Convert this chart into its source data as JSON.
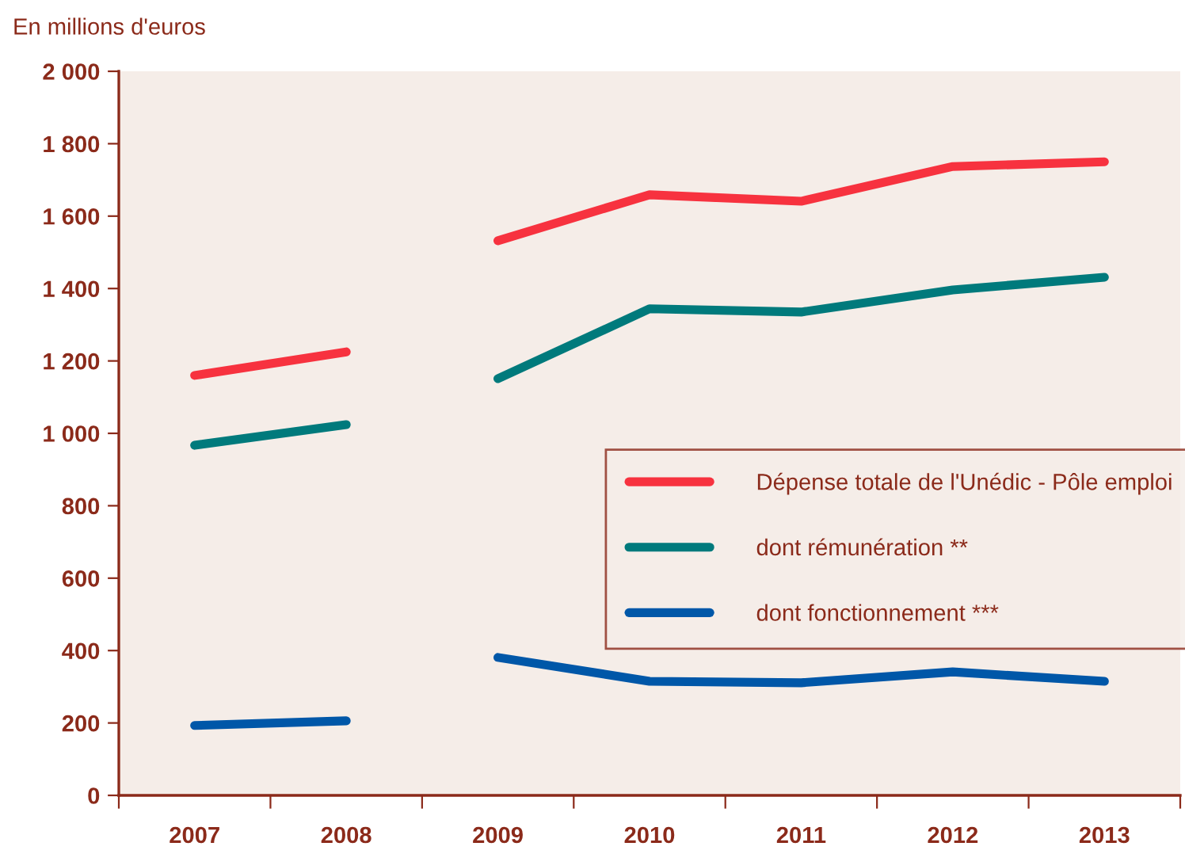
{
  "chart_data": {
    "type": "line",
    "ylabel": "En millions d'euros",
    "categories": [
      "2007",
      "2008",
      "2009",
      "2010",
      "2011",
      "2012",
      "2013"
    ],
    "series": [
      {
        "name": "Dépense totale de l'Unédic - Pôle emploi",
        "color": "#f7323f",
        "values": [
          1160,
          1225,
          null,
          null,
          null,
          null,
          null
        ]
      },
      {
        "name": "dont rémunération **",
        "color": "#007a7c",
        "values": [
          967,
          1024,
          null,
          null,
          null,
          null,
          null
        ]
      },
      {
        "name": "dont fonctionnement ***",
        "color": "#0057a8",
        "values": [
          193,
          206,
          null,
          null,
          null,
          null,
          null
        ]
      },
      {
        "color": "#f7323f",
        "values": [
          null,
          null,
          1532,
          1659,
          1641,
          1737,
          1750
        ]
      },
      {
        "color": "#007a7c",
        "values": [
          null,
          null,
          1151,
          1344,
          1335,
          1396,
          1431
        ]
      },
      {
        "color": "#0057a8",
        "values": [
          null,
          null,
          381,
          315,
          311,
          341,
          315
        ]
      }
    ],
    "ylim": [
      0,
      2000
    ],
    "yticks": [
      0,
      200,
      400,
      600,
      800,
      {
        "value": 1000,
        "label": "1 000"
      },
      {
        "value": 1200,
        "label": "1 200"
      },
      {
        "value": 1400,
        "label": "1 400"
      },
      {
        "value": 1600,
        "label": "1 600"
      },
      {
        "value": 1800,
        "label": "1 800"
      },
      {
        "value": 2000,
        "label": "2 000"
      }
    ],
    "grid": false,
    "legend": "right",
    "marker": "none",
    "line_style": "solid"
  }
}
